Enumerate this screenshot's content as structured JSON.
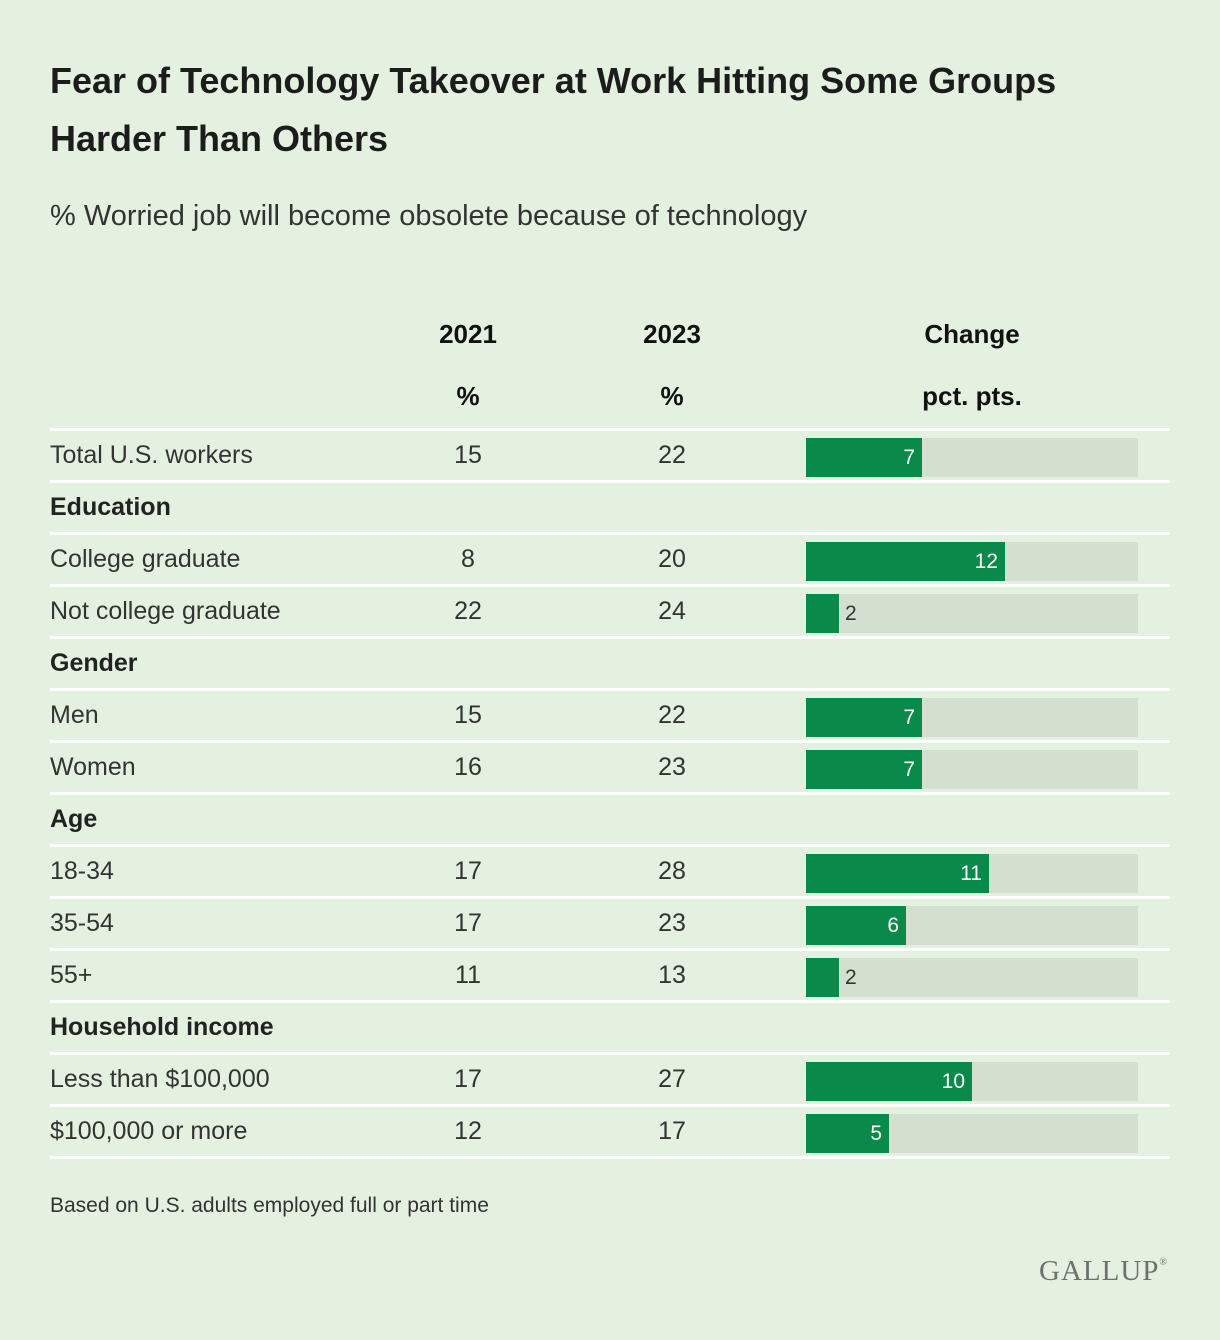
{
  "title": "Fear of Technology Takeover at Work Hitting Some Groups Harder Than Others",
  "subtitle": "% Worried job will become obsolete because of technology",
  "columns": {
    "c2021": {
      "label": "2021",
      "unit": "%"
    },
    "c2023": {
      "label": "2023",
      "unit": "%"
    },
    "change": {
      "label": "Change",
      "unit": "pct. pts."
    }
  },
  "footnote": "Based on U.S. adults employed full or part time",
  "logo": {
    "text": "GALLUP",
    "mark": "®"
  },
  "colors": {
    "background": "#e4f1e1",
    "bar_fill": "#098a4a",
    "bar_track": "#d3e0d0",
    "divider": "#ffffff"
  },
  "chart_data": {
    "type": "table",
    "title": "Fear of Technology Takeover at Work Hitting Some Groups Harder Than Others",
    "subtitle": "% Worried job will become obsolete because of technology",
    "change_axis_max": 20,
    "rows": [
      {
        "type": "item",
        "label": "Total U.S. workers",
        "v2021": "15",
        "v2023": "22",
        "change": 7
      },
      {
        "type": "group",
        "label": "Education"
      },
      {
        "type": "item",
        "label": "College graduate",
        "v2021": "8",
        "v2023": "20",
        "change": 12
      },
      {
        "type": "item",
        "label": "Not college graduate",
        "v2021": "22",
        "v2023": "24",
        "change": 2
      },
      {
        "type": "group",
        "label": "Gender"
      },
      {
        "type": "item",
        "label": "Men",
        "v2021": "15",
        "v2023": "22",
        "change": 7
      },
      {
        "type": "item",
        "label": "Women",
        "v2021": "16",
        "v2023": "23",
        "change": 7
      },
      {
        "type": "group",
        "label": "Age"
      },
      {
        "type": "item",
        "label": "18-34",
        "v2021": "17",
        "v2023": "28",
        "change": 11
      },
      {
        "type": "item",
        "label": "35-54",
        "v2021": "17",
        "v2023": "23",
        "change": 6
      },
      {
        "type": "item",
        "label": "55+",
        "v2021": "11",
        "v2023": "13",
        "change": 2
      },
      {
        "type": "group",
        "label": "Household income"
      },
      {
        "type": "item",
        "label": "Less than $100,000",
        "v2021": "17",
        "v2023": "27",
        "change": 10
      },
      {
        "type": "item",
        "label": "$100,000 or more",
        "v2021": "12",
        "v2023": "17",
        "change": 5
      }
    ]
  }
}
